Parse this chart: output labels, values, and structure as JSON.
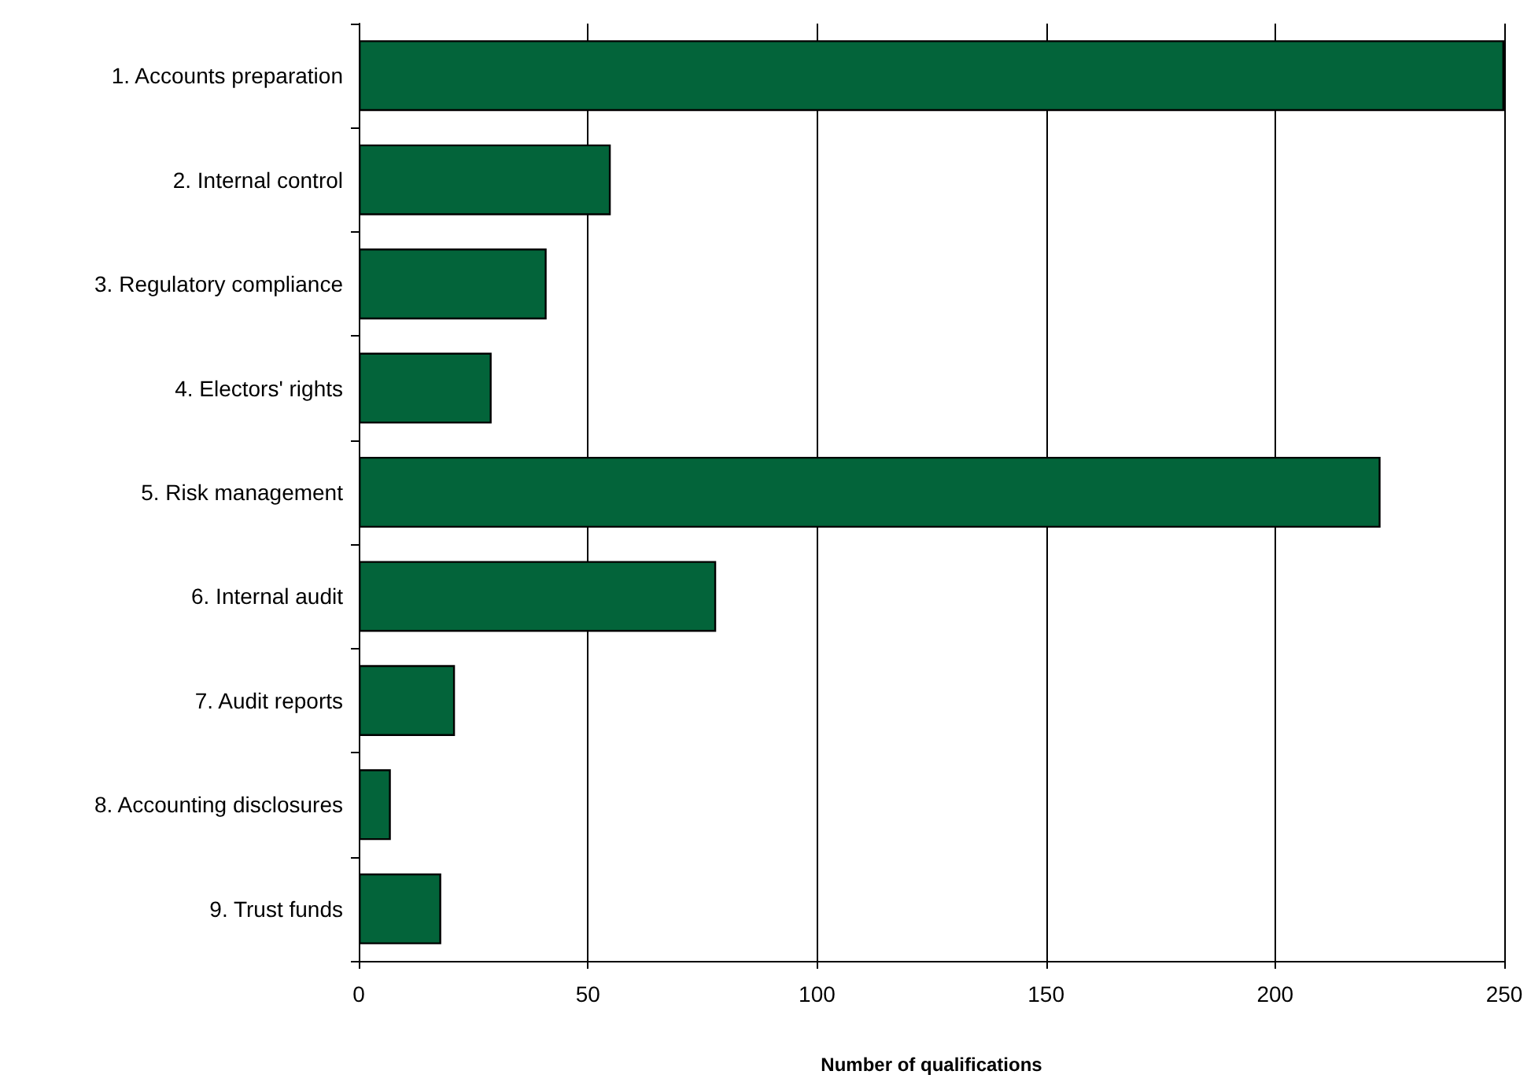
{
  "chart_data": {
    "type": "bar",
    "orientation": "horizontal",
    "xlabel": "Number of qualifications",
    "categories": [
      "1. Accounts preparation",
      "2. Internal control",
      "3. Regulatory compliance",
      "4. Electors' rights",
      "5. Risk management",
      "6. Internal audit",
      "7. Audit reports",
      "8. Accounting disclosures",
      "9. Trust funds"
    ],
    "values": [
      250,
      55,
      41,
      29,
      223,
      78,
      21,
      7,
      18
    ],
    "color": "#03643a",
    "xlim": [
      0,
      250
    ],
    "xticks": [
      0,
      50,
      100,
      150,
      200,
      250
    ],
    "grid": "x"
  }
}
